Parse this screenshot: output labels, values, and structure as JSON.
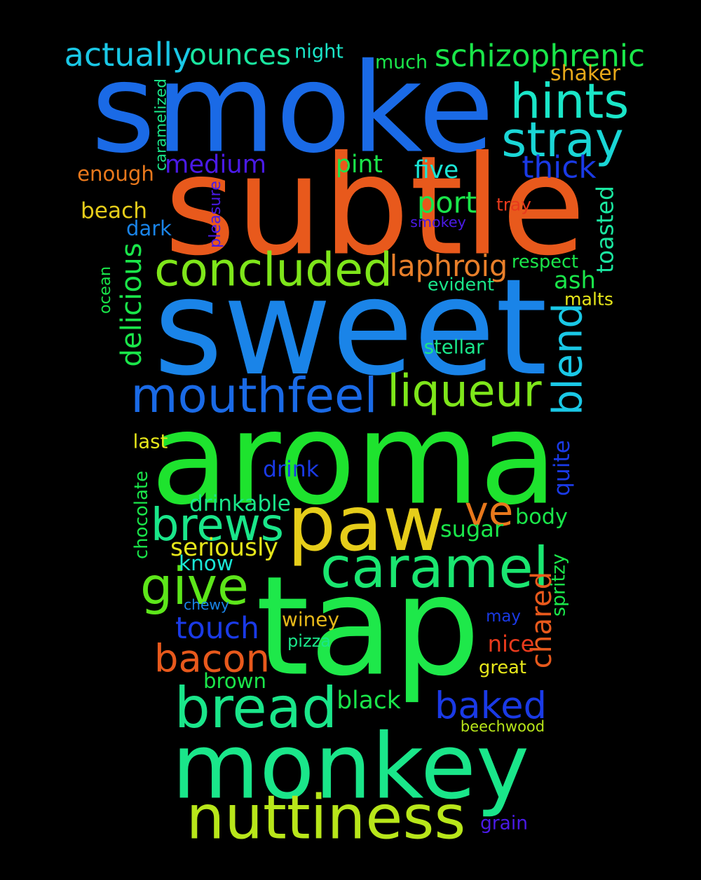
{
  "words": [
    {
      "text": "smoke",
      "color": "#1a6ae6"
    },
    {
      "text": "subtle",
      "color": "#e8591c"
    },
    {
      "text": "sweet",
      "color": "#1a84e8"
    },
    {
      "text": "aroma",
      "color": "#1ee32e"
    },
    {
      "text": "tap",
      "color": "#1ee84a"
    },
    {
      "text": "monkey",
      "color": "#1ae68a"
    },
    {
      "text": "paw",
      "color": "#e6cd1a"
    },
    {
      "text": "nuttiness",
      "color": "#b8e61a"
    },
    {
      "text": "caramel",
      "color": "#1ae670"
    },
    {
      "text": "bread",
      "color": "#1ae68a"
    },
    {
      "text": "mouthfeel",
      "color": "#1a6ae6"
    },
    {
      "text": "concluded",
      "color": "#7ee61a"
    },
    {
      "text": "brews",
      "color": "#1ae68a"
    },
    {
      "text": "give",
      "color": "#5de61a"
    },
    {
      "text": "bacon",
      "color": "#e8591c"
    },
    {
      "text": "baked",
      "color": "#1a3ae6"
    },
    {
      "text": "liqueur",
      "color": "#7ee61a"
    },
    {
      "text": "hints",
      "color": "#1ae6c8"
    },
    {
      "text": "stray",
      "color": "#1ad6d6"
    },
    {
      "text": "ve",
      "color": "#e8781c"
    },
    {
      "text": "blend",
      "color": "#1ac8e6"
    },
    {
      "text": "touch",
      "color": "#1a3ae6"
    },
    {
      "text": "schizophrenic",
      "color": "#1ae64a"
    },
    {
      "text": "actually",
      "color": "#1ac8e6"
    },
    {
      "text": "ounces",
      "color": "#1ae6a0"
    },
    {
      "text": "medium",
      "color": "#4a1ae6"
    },
    {
      "text": "thick",
      "color": "#1a3ae6"
    },
    {
      "text": "delicious",
      "color": "#1ae64a"
    },
    {
      "text": "laphroig",
      "color": "#e87f2a"
    },
    {
      "text": "port",
      "color": "#1ae64a"
    },
    {
      "text": "ash",
      "color": "#1ae64a"
    },
    {
      "text": "chared",
      "color": "#e8591c"
    },
    {
      "text": "toasted",
      "color": "#1ae6a0"
    },
    {
      "text": "enough",
      "color": "#e8781c"
    },
    {
      "text": "beach",
      "color": "#e6cd1a"
    },
    {
      "text": "much",
      "color": "#1ae64a"
    },
    {
      "text": "pint",
      "color": "#1ae64a"
    },
    {
      "text": "shaker",
      "color": "#e6a81a"
    },
    {
      "text": "five",
      "color": "#1ae6d6"
    },
    {
      "text": "dark",
      "color": "#1a84e8"
    },
    {
      "text": "sugar",
      "color": "#1ae64a"
    },
    {
      "text": "body",
      "color": "#1ae64a"
    },
    {
      "text": "seriously",
      "color": "#e6e61a"
    },
    {
      "text": "drinkable",
      "color": "#1ae68a"
    },
    {
      "text": "drink",
      "color": "#1a3ae6"
    },
    {
      "text": "brown",
      "color": "#1ae64a"
    },
    {
      "text": "black",
      "color": "#1ae64a"
    },
    {
      "text": "winey",
      "color": "#e6b81a"
    },
    {
      "text": "may",
      "color": "#1a3ae6"
    },
    {
      "text": "nice",
      "color": "#e83a1c"
    },
    {
      "text": "great",
      "color": "#e6e61a"
    },
    {
      "text": "know",
      "color": "#1ae6d6"
    },
    {
      "text": "chewy",
      "color": "#1a84e8"
    },
    {
      "text": "quite",
      "color": "#1a3ae6"
    },
    {
      "text": "spritzy",
      "color": "#1ae64a"
    },
    {
      "text": "chocolate",
      "color": "#1ae64a"
    },
    {
      "text": "night",
      "color": "#1ae6c8"
    },
    {
      "text": "caramelized",
      "color": "#1ae68a"
    },
    {
      "text": "pleasure",
      "color": "#4a1ae6"
    },
    {
      "text": "smokey",
      "color": "#4a1ae6"
    },
    {
      "text": "tray",
      "color": "#e83a1c"
    },
    {
      "text": "respect",
      "color": "#1ae64a"
    },
    {
      "text": "evident",
      "color": "#1ae68a"
    },
    {
      "text": "malts",
      "color": "#e6e61a"
    },
    {
      "text": "stellar",
      "color": "#1ae68a"
    },
    {
      "text": "ocean",
      "color": "#1ae64a"
    },
    {
      "text": "last",
      "color": "#e6e61a"
    },
    {
      "text": "pizza",
      "color": "#1ae68a"
    },
    {
      "text": "beechwood",
      "color": "#b8e61a"
    },
    {
      "text": "grain",
      "color": "#4a1ae6"
    }
  ]
}
